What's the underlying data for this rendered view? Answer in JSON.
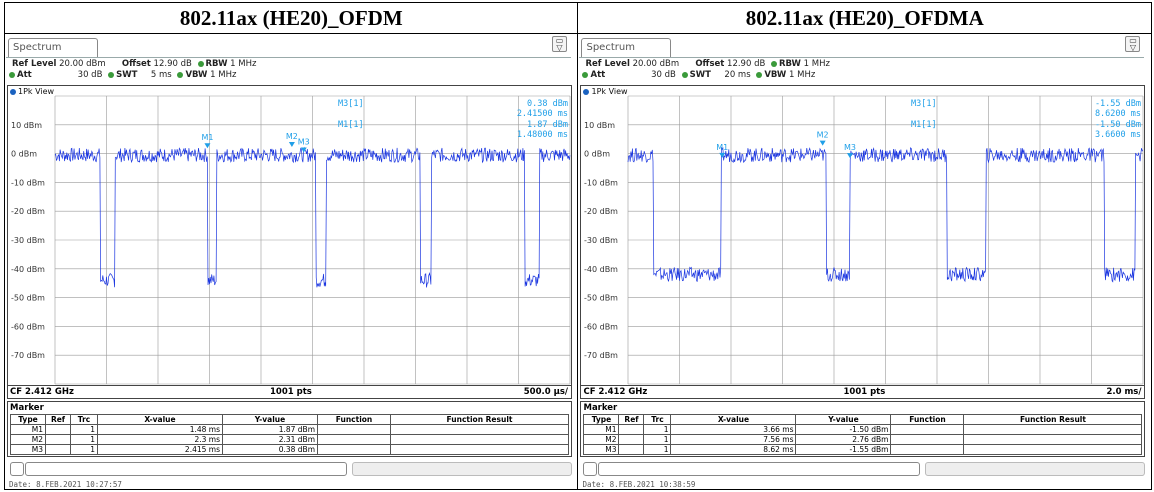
{
  "panels": [
    {
      "header": "802.11ax (HE20)_OFDM",
      "tab_label": "Spectrum",
      "settings": {
        "ref_level_label": "Ref Level",
        "ref_level_value": "20.00 dBm",
        "offset_label": "Offset",
        "offset_value": "12.90 dB",
        "rbw_label": "RBW",
        "rbw_value": "1 MHz",
        "att_label": "Att",
        "att_value": "30 dB",
        "swt_label": "SWT",
        "swt_value": "5 ms",
        "vbw_label": "VBW",
        "vbw_value": "1 MHz"
      },
      "view_label": "1Pk View",
      "ylabels": [
        "10 dBm",
        "0 dBm",
        "-10 dBm",
        "-20 dBm",
        "-30 dBm",
        "-40 dBm",
        "-50 dBm",
        "-60 dBm",
        "-70 dBm"
      ],
      "marker_readouts": {
        "m3_label": "M3[1]",
        "m3_y": "0.38 dBm",
        "m3_x": "2.41500 ms",
        "m1_label": "M1[1]",
        "m1_y": "1.87 dBm",
        "m1_x": "1.48000 ms"
      },
      "marker_tags": [
        "M1",
        "M2",
        "M3"
      ],
      "cf": "CF 2.412 GHz",
      "pts": "1001 pts",
      "div": "500.0 µs/",
      "marker_title": "Marker",
      "columns": [
        "Type",
        "Ref",
        "Trc",
        "X-value",
        "Y-value",
        "Function",
        "Function Result"
      ],
      "rows": [
        [
          "M1",
          "",
          "1",
          "1.48 ms",
          "1.87 dBm",
          "",
          ""
        ],
        [
          "M2",
          "",
          "1",
          "2.3 ms",
          "2.31 dBm",
          "",
          ""
        ],
        [
          "M3",
          "",
          "1",
          "2.415 ms",
          "0.38 dBm",
          "",
          ""
        ]
      ],
      "date": "Date: 8.FEB.2021  10:27:57",
      "trace": {
        "x_max_ms": 5.0,
        "gaps_ms": [
          [
            0.44,
            0.58
          ],
          [
            1.48,
            1.57
          ],
          [
            2.53,
            2.63
          ],
          [
            3.55,
            3.65
          ],
          [
            4.56,
            4.7
          ]
        ],
        "high_dbm": 0,
        "low_dbm": -44,
        "markers": [
          [
            1.48,
            1.87
          ],
          [
            2.3,
            2.31
          ],
          [
            2.415,
            0.38
          ]
        ]
      }
    },
    {
      "header": "802.11ax (HE20)_OFDMA",
      "tab_label": "Spectrum",
      "settings": {
        "ref_level_label": "Ref Level",
        "ref_level_value": "20.00 dBm",
        "offset_label": "Offset",
        "offset_value": "12.90 dB",
        "rbw_label": "RBW",
        "rbw_value": "1 MHz",
        "att_label": "Att",
        "att_value": "30 dB",
        "swt_label": "SWT",
        "swt_value": "20 ms",
        "vbw_label": "VBW",
        "vbw_value": "1 MHz"
      },
      "view_label": "1Pk View",
      "ylabels": [
        "10 dBm",
        "0 dBm",
        "-10 dBm",
        "-20 dBm",
        "-30 dBm",
        "-40 dBm",
        "-50 dBm",
        "-60 dBm",
        "-70 dBm"
      ],
      "marker_readouts": {
        "m3_label": "M3[1]",
        "m3_y": "-1.55 dBm",
        "m3_x": "8.6200 ms",
        "m1_label": "M1[1]",
        "m1_y": "-1.50 dBm",
        "m1_x": "3.6600 ms"
      },
      "marker_tags": [
        "M1",
        "M2",
        "M3"
      ],
      "cf": "CF 2.412 GHz",
      "pts": "1001 pts",
      "div": "2.0 ms/",
      "marker_title": "Marker",
      "columns": [
        "Type",
        "Ref",
        "Trc",
        "X-value",
        "Y-value",
        "Function",
        "Function Result"
      ],
      "rows": [
        [
          "M1",
          "",
          "1",
          "3.66 ms",
          "-1.50 dBm",
          "",
          ""
        ],
        [
          "M2",
          "",
          "1",
          "7.56 ms",
          "2.76 dBm",
          "",
          ""
        ],
        [
          "M3",
          "",
          "1",
          "8.62 ms",
          "-1.55 dBm",
          "",
          ""
        ]
      ],
      "date": "Date: 8.FEB.2021  10:38:59",
      "trace": {
        "x_max_ms": 20.0,
        "gaps_ms": [
          [
            1.0,
            3.6
          ],
          [
            7.7,
            8.6
          ],
          [
            12.4,
            13.9
          ],
          [
            18.5,
            19.7
          ]
        ],
        "high_dbm": 0,
        "low_dbm": -42,
        "markers": [
          [
            3.66,
            -1.5
          ],
          [
            7.56,
            2.76
          ],
          [
            8.62,
            -1.55
          ]
        ]
      }
    }
  ],
  "colors": {
    "trace": "#1a35e0",
    "marker": "#1f9fe8",
    "grid": "#9a9a9a",
    "status_green": "#3a9a3a"
  }
}
